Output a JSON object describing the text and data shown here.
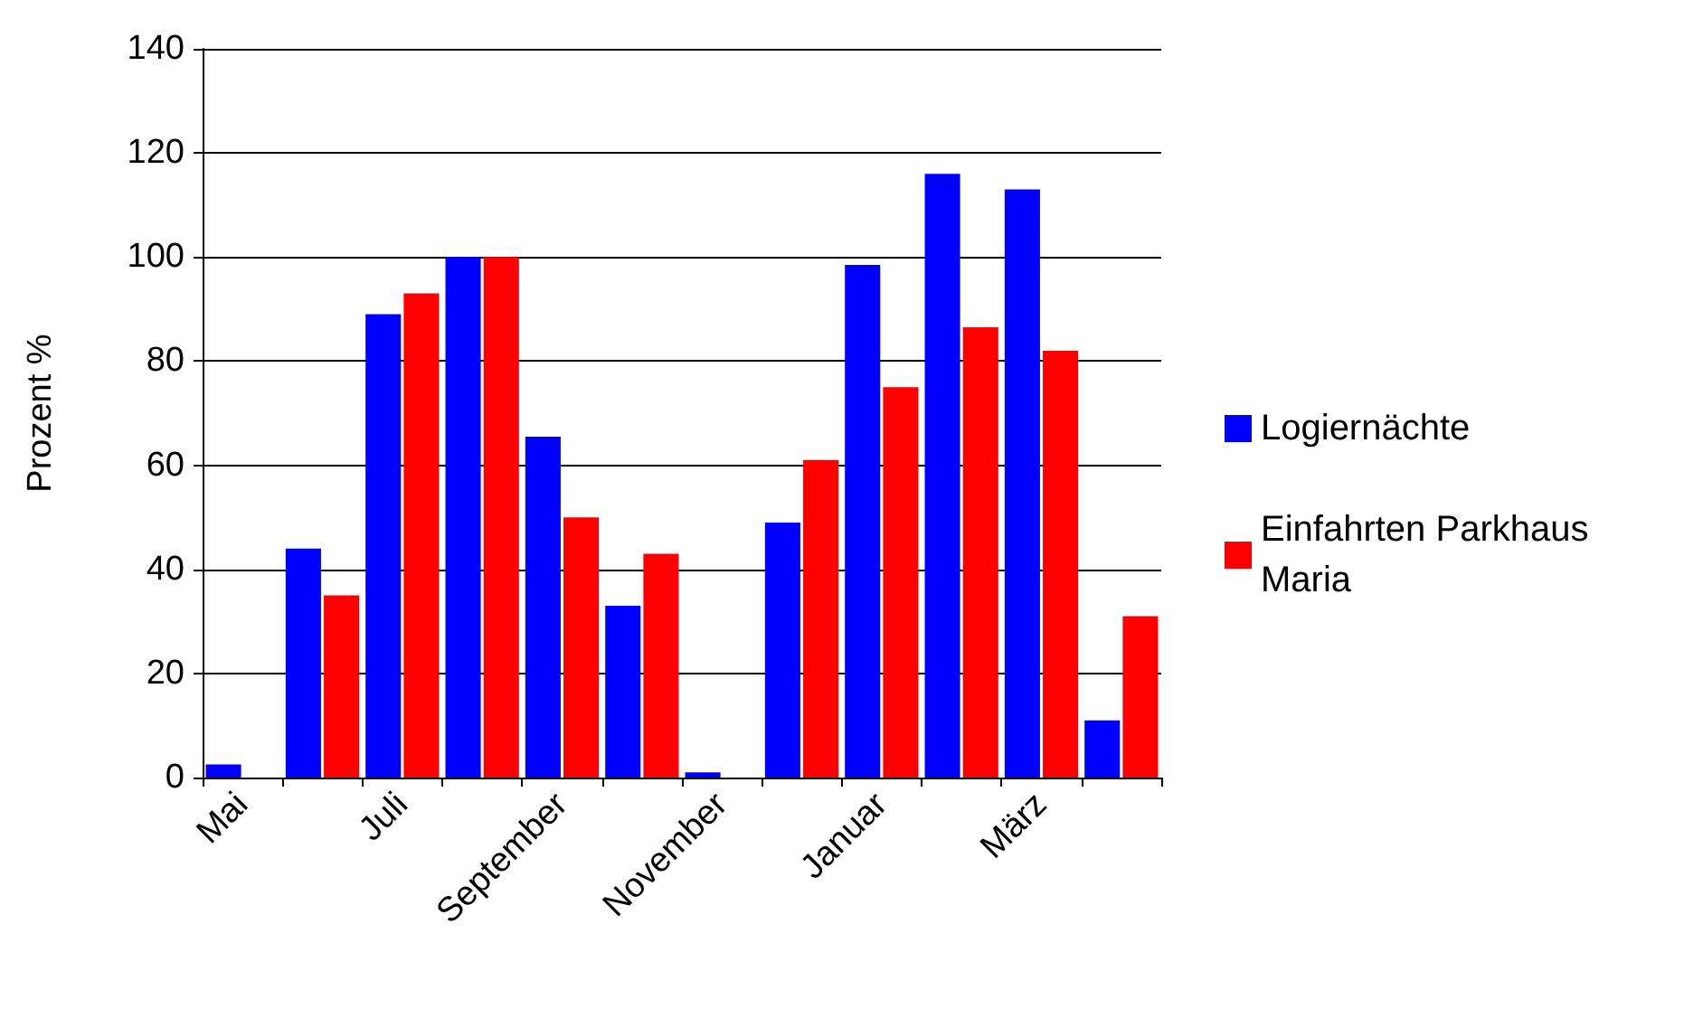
{
  "chart_data": {
    "type": "bar",
    "ylabel": "Prozent %",
    "categories": [
      "Mai",
      null,
      "Juli",
      null,
      "September",
      null,
      "November",
      null,
      "Januar",
      null,
      "März",
      null
    ],
    "series": [
      {
        "name": "Logiernächte",
        "color": "#0000ff",
        "values": [
          2.5,
          44,
          89,
          100,
          65.5,
          33,
          1,
          49,
          98.5,
          116,
          113,
          11
        ]
      },
      {
        "name": "Einfahrten Parkhaus Maria",
        "color": "#ff0000",
        "values": [
          null,
          35,
          93,
          100,
          50,
          43,
          null,
          61,
          75,
          86.5,
          82,
          31
        ]
      }
    ],
    "ylim": [
      0,
      140
    ],
    "yticks": [
      0,
      20,
      40,
      60,
      80,
      100,
      120,
      140
    ],
    "grid": "y",
    "legend": "right"
  }
}
